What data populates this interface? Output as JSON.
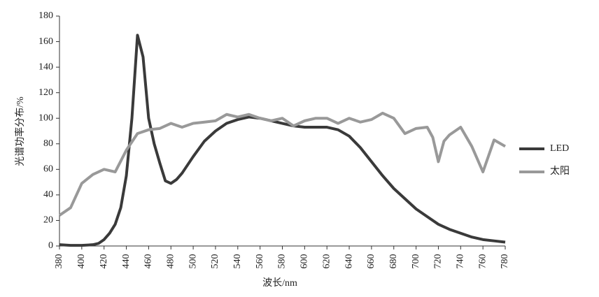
{
  "chart_data": {
    "type": "line",
    "x_label": "波长/nm",
    "y_label": "光谱功率分布/%",
    "xlim": [
      380,
      780
    ],
    "xticks": [
      380,
      400,
      420,
      440,
      460,
      480,
      500,
      520,
      540,
      560,
      580,
      600,
      620,
      640,
      660,
      680,
      700,
      720,
      740,
      760,
      780
    ],
    "ylim": [
      0,
      180
    ],
    "yticks": [
      0,
      20,
      40,
      60,
      80,
      100,
      120,
      140,
      160,
      180
    ],
    "grid": false,
    "legend": "right",
    "series": [
      {
        "name": "LED",
        "color": "#3a3a3a",
        "x": [
          380,
          390,
          400,
          410,
          415,
          420,
          425,
          430,
          435,
          440,
          445,
          450,
          455,
          460,
          465,
          470,
          475,
          480,
          485,
          490,
          500,
          510,
          520,
          530,
          540,
          550,
          560,
          570,
          580,
          590,
          600,
          610,
          620,
          630,
          640,
          650,
          660,
          670,
          680,
          690,
          700,
          710,
          720,
          730,
          740,
          750,
          760,
          770,
          780
        ],
        "values": [
          1,
          0.5,
          0.5,
          1,
          2,
          5,
          10,
          17,
          30,
          55,
          100,
          165,
          148,
          100,
          80,
          65,
          51,
          49,
          52,
          57,
          70,
          82,
          90,
          96,
          99,
          101,
          100,
          98,
          96,
          94,
          93,
          93,
          93,
          91,
          86,
          77,
          66,
          55,
          45,
          37,
          29,
          23,
          17,
          13,
          10,
          7,
          5,
          4,
          3
        ]
      },
      {
        "name": "太阳",
        "color": "#999999",
        "x": [
          380,
          390,
          400,
          410,
          420,
          430,
          440,
          450,
          460,
          470,
          480,
          490,
          500,
          510,
          520,
          530,
          540,
          550,
          560,
          570,
          580,
          590,
          600,
          610,
          620,
          630,
          640,
          650,
          660,
          670,
          680,
          690,
          700,
          710,
          715,
          720,
          725,
          730,
          740,
          750,
          760,
          770,
          780
        ],
        "values": [
          24,
          30,
          49,
          56,
          60,
          58,
          75,
          88,
          91,
          92,
          96,
          93,
          96,
          97,
          98,
          103,
          101,
          103,
          100,
          98,
          100,
          94,
          98,
          100,
          100,
          96,
          100,
          97,
          99,
          104,
          100,
          88,
          92,
          93,
          85,
          66,
          82,
          87,
          93,
          78,
          58,
          83,
          78
        ]
      }
    ]
  }
}
